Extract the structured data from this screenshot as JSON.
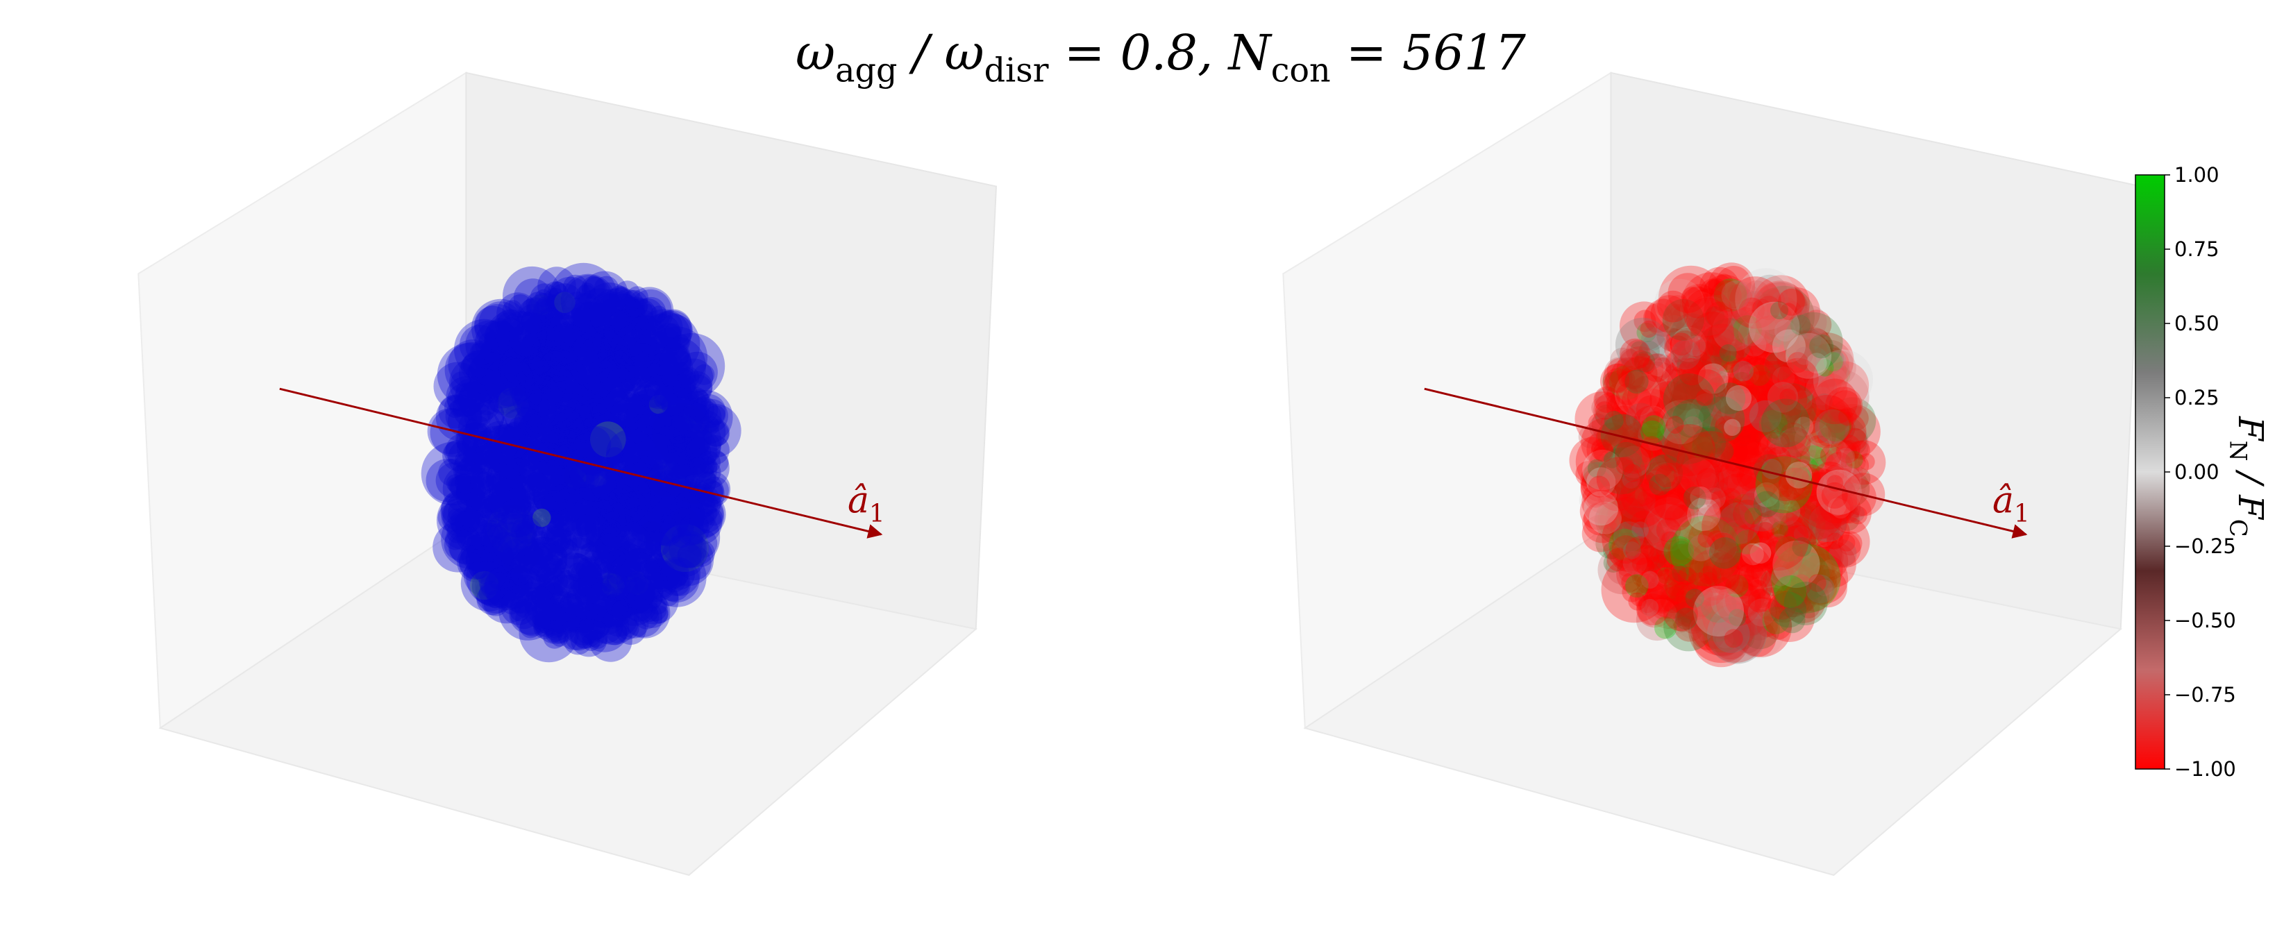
{
  "chart_data": {
    "type": "scatter3d",
    "title_parts": [
      "ω",
      "agg",
      " / ω",
      "disr",
      " = 0.8, N",
      "con",
      " = 5617"
    ],
    "axis_label_parts": [
      "â",
      "1"
    ],
    "left_color": "#0a0ad2",
    "colorbar": {
      "label_parts": [
        "F",
        "N",
        " / F",
        "C"
      ],
      "lim": [
        -1,
        1
      ],
      "ticks": [
        {
          "value": 1,
          "label": "1.00"
        },
        {
          "value": 0.75,
          "label": "0.75"
        },
        {
          "value": 0.5,
          "label": "0.50"
        },
        {
          "value": 0.25,
          "label": "0.25"
        },
        {
          "value": 0,
          "label": "0.00"
        },
        {
          "value": -0.25,
          "label": "−0.25"
        },
        {
          "value": -0.5,
          "label": "−0.50"
        },
        {
          "value": -0.75,
          "label": "−0.75"
        },
        {
          "value": -1,
          "label": "−1.00"
        }
      ],
      "colors": [
        "#ff0000",
        "#c46a6a",
        "#5a2828",
        "#dcdcdc",
        "#7c7c7c",
        "#2e7a2e",
        "#00cc00"
      ]
    }
  }
}
